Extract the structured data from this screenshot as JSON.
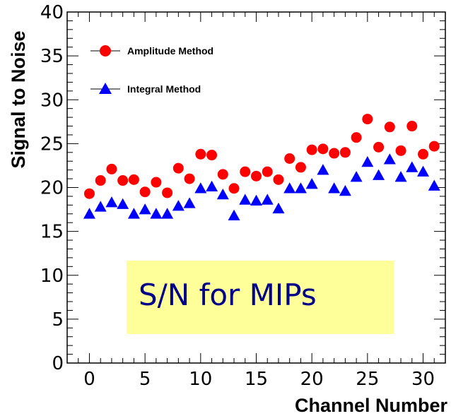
{
  "chart_data": {
    "type": "scatter",
    "xlabel": "Channel Number",
    "ylabel": "Signal to Noise",
    "xlim": [
      -2,
      32
    ],
    "ylim": [
      0,
      40
    ],
    "x_ticks": [
      0,
      5,
      10,
      15,
      20,
      25,
      30
    ],
    "y_ticks": [
      0,
      5,
      10,
      15,
      20,
      25,
      30,
      35,
      40
    ],
    "x_tick_labels": [
      "0",
      "5",
      "10",
      "15",
      "20",
      "25",
      "30"
    ],
    "y_tick_labels": [
      "0",
      "5",
      "10",
      "15",
      "20",
      "25",
      "30",
      "35",
      "40"
    ],
    "legend_position": "top-left",
    "annotation": "S/N for MIPs",
    "series": [
      {
        "name": "Amplitude Method",
        "marker": "circle",
        "color": "#ff0000",
        "x": [
          0,
          1,
          2,
          3,
          4,
          5,
          6,
          7,
          8,
          9,
          10,
          11,
          12,
          13,
          14,
          15,
          16,
          17,
          18,
          19,
          20,
          21,
          22,
          23,
          24,
          25,
          26,
          27,
          28,
          29,
          30,
          31
        ],
        "y": [
          19.3,
          20.8,
          22.1,
          20.8,
          20.9,
          19.5,
          20.6,
          19.4,
          22.2,
          21.0,
          23.8,
          23.7,
          21.5,
          19.9,
          21.8,
          21.3,
          21.8,
          20.9,
          23.3,
          22.3,
          24.3,
          24.4,
          23.9,
          24.0,
          25.7,
          27.8,
          24.6,
          26.9,
          24.2,
          27.0,
          23.8,
          24.7
        ]
      },
      {
        "name": "Integral  Method",
        "marker": "triangle",
        "color": "#0000ff",
        "x": [
          0,
          1,
          2,
          3,
          4,
          5,
          6,
          7,
          8,
          9,
          10,
          11,
          12,
          13,
          14,
          15,
          16,
          17,
          18,
          19,
          20,
          21,
          22,
          23,
          24,
          25,
          26,
          27,
          28,
          29,
          30,
          31
        ],
        "y": [
          17.0,
          17.8,
          18.3,
          18.1,
          17.0,
          17.5,
          17.0,
          17.0,
          17.9,
          18.2,
          19.9,
          20.1,
          19.2,
          16.8,
          18.6,
          18.5,
          18.6,
          17.6,
          19.9,
          19.9,
          20.4,
          22.0,
          19.9,
          19.6,
          21.2,
          22.9,
          21.4,
          23.2,
          21.2,
          22.3,
          21.8,
          20.2
        ]
      }
    ]
  }
}
